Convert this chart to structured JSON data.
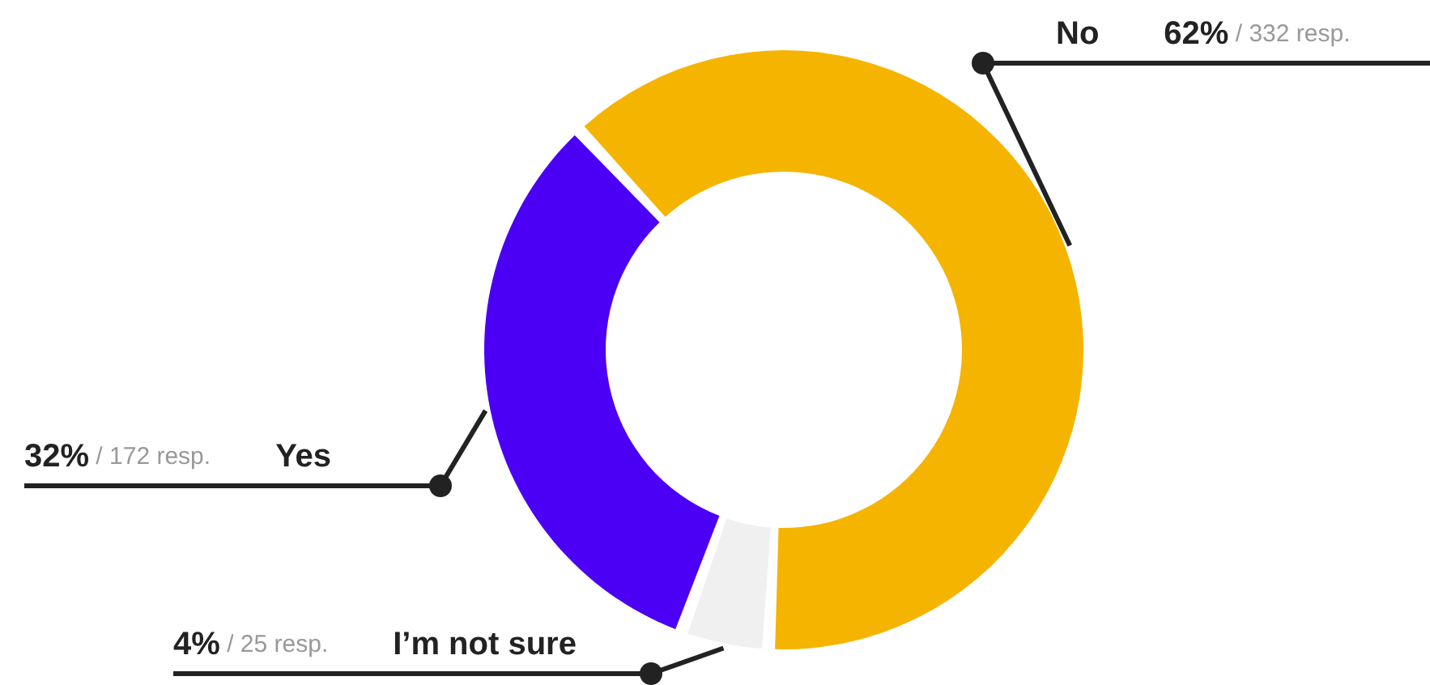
{
  "chart_data": {
    "type": "donut",
    "categories": [
      "No",
      "I’m not sure",
      "Yes"
    ],
    "values": [
      332,
      25,
      172
    ],
    "value_labels": [
      "62% / 332 resp.",
      "4% / 25 resp.",
      "32% / 172 resp."
    ],
    "colors": [
      "#f5b400",
      "#f0f0f0",
      "#4b00f5"
    ]
  }
}
